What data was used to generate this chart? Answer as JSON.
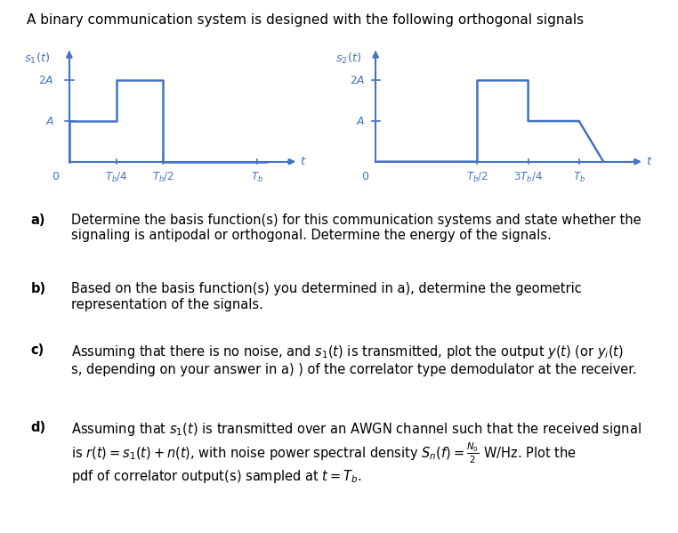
{
  "title": "A binary communication system is designed with the following orthogonal signals",
  "title_fontsize": 11.0,
  "signal_color": "#4472C4",
  "bg_color": "#FFFFFF",
  "s1": {
    "x": [
      0,
      0,
      0.25,
      0.25,
      0.5,
      0.5,
      1.05
    ],
    "y": [
      0,
      1,
      1,
      2,
      2,
      0,
      0
    ],
    "xticks": [
      0.25,
      0.5,
      1.0
    ],
    "xtick_labels": [
      "$T_b/4$",
      "$T_b/2$",
      "$T_b$"
    ],
    "yticks": [
      1,
      2
    ],
    "ytick_labels": [
      "$A$",
      "$2A$"
    ],
    "xlim": [
      -0.08,
      1.22
    ],
    "ylim": [
      -0.35,
      2.8
    ]
  },
  "s2": {
    "x": [
      0,
      0.5,
      0.5,
      0.75,
      0.75,
      1.0,
      1.12
    ],
    "y": [
      0,
      0,
      2,
      2,
      1,
      1,
      0
    ],
    "xticks": [
      0.5,
      0.75,
      1.0
    ],
    "xtick_labels": [
      "$T_b/2$",
      "$3T_b/4$",
      "$T_b$"
    ],
    "yticks": [
      1,
      2
    ],
    "ytick_labels": [
      "$A$",
      "$2A$"
    ],
    "xlim": [
      -0.08,
      1.32
    ],
    "ylim": [
      -0.35,
      2.8
    ]
  },
  "text_a_label": "a)",
  "text_a_body": "Determine the basis function(s) for this communication systems and state whether the\nsignaling is antipodal or orthogonal. Determine the energy of the signals.",
  "text_b_label": "b)",
  "text_b_body": "Based on the basis function(s) you determined in a), determine the geometric\nrepresentation of the signals.",
  "text_c_label": "c)",
  "text_c_body": "Assuming that there is no noise, and $s_1(t)$ is transmitted, plot the output $y(t)$ (or $y_i(t)$\ns, depending on your answer in a) ) of the correlator type demodulator at the receiver.",
  "text_d_label": "d)",
  "text_d_body": "Assuming that $s_1(t)$ is transmitted over an AWGN channel such that the received signal\nis $r(t) = s_1(t) + n(t)$, with noise power spectral density $S_n(f) = \\frac{N_0}{2}$ W/Hz. Plot the\npdf of correlator output(s) sampled at $t = T_b$.",
  "text_fontsize": 10.5
}
